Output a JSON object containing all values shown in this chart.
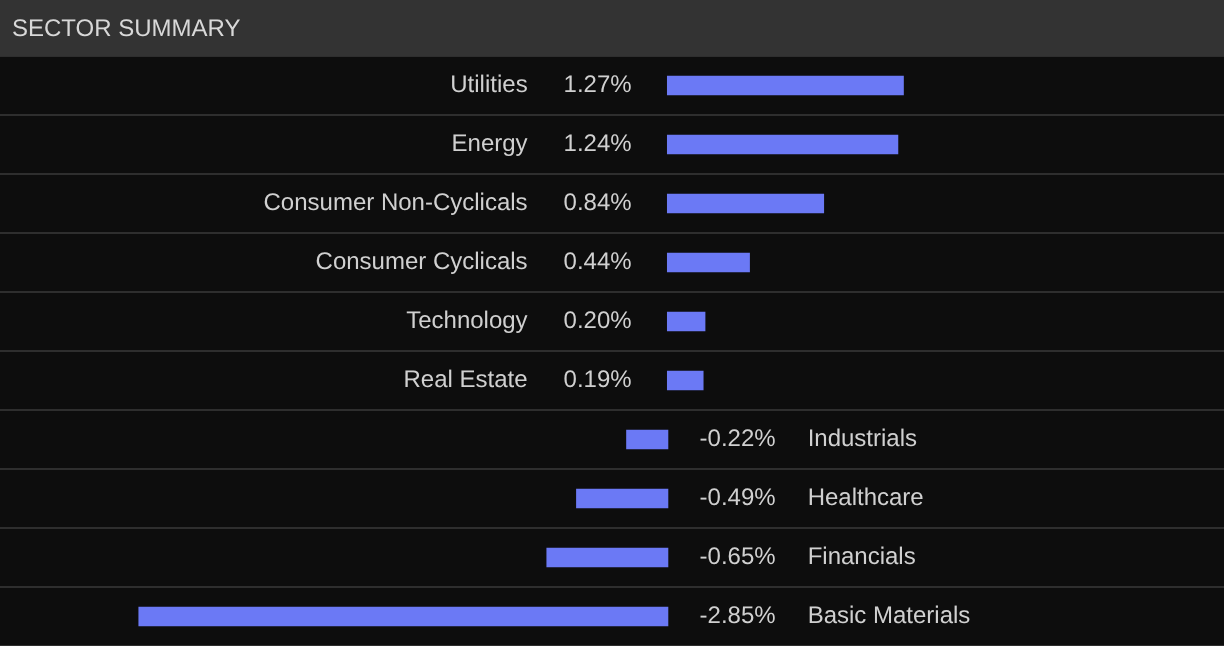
{
  "chart_data": {
    "type": "bar",
    "orientation": "horizontal",
    "title": "SECTOR SUMMARY",
    "categories": [
      "Utilities",
      "Energy",
      "Consumer Non-Cyclicals",
      "Consumer Cyclicals",
      "Technology",
      "Real Estate",
      "Industrials",
      "Healthcare",
      "Financials",
      "Basic Materials"
    ],
    "values": [
      1.27,
      1.24,
      0.84,
      0.44,
      0.2,
      0.19,
      -0.22,
      -0.49,
      -0.65,
      -2.85
    ],
    "value_labels": [
      "1.27%",
      "1.24%",
      "0.84%",
      "0.44%",
      "0.20%",
      "0.19%",
      "-0.22%",
      "-0.49%",
      "-0.65%",
      "-2.85%"
    ],
    "color": "#6b79f5",
    "xlim": [
      -3.6,
      3.0
    ],
    "grid": "y",
    "legend": false
  }
}
